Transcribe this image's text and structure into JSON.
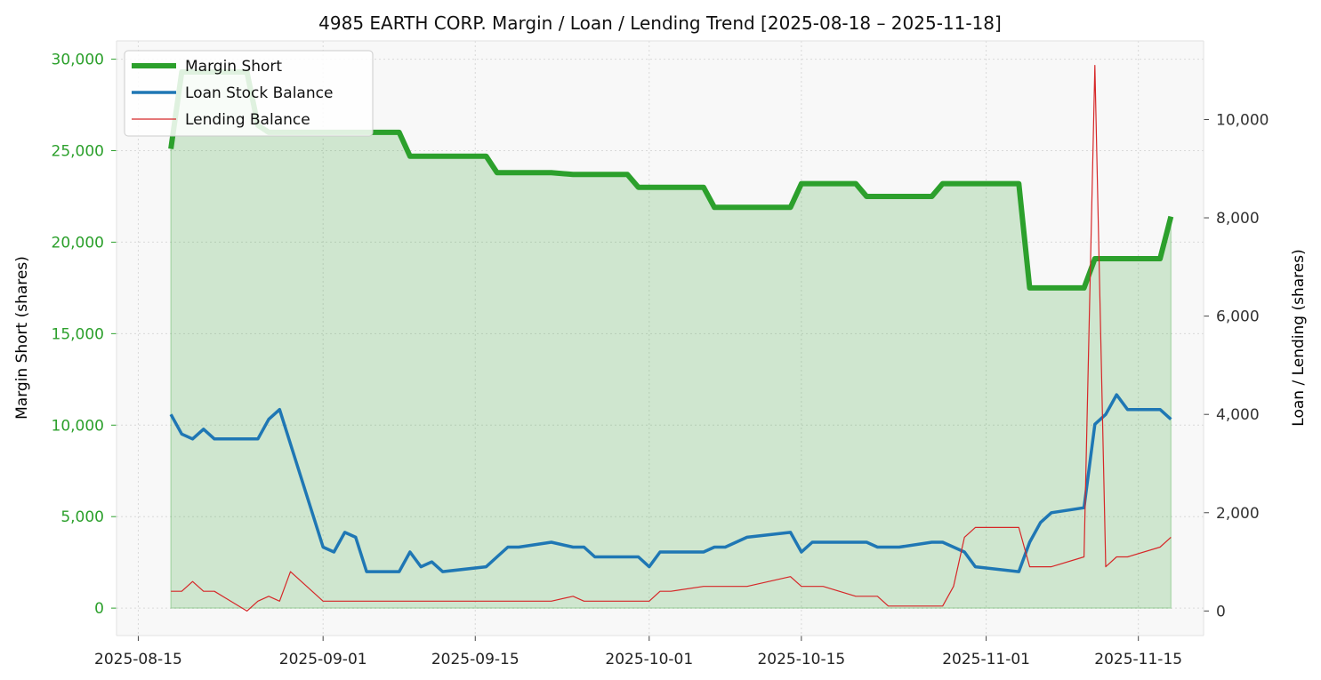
{
  "chart_data": {
    "type": "line",
    "title": "4985 EARTH CORP. Margin / Loan / Lending Trend [2025-08-18 – 2025-11-18]",
    "ylabel_left": "Margin Short (shares)",
    "ylabel_right": "Loan / Lending (shares)",
    "xlabel": "",
    "x_range": [
      "2025-08-13",
      "2025-11-21"
    ],
    "ylim_left": [
      -1500,
      31000
    ],
    "ylim_right": [
      -500,
      11600
    ],
    "x_ticks": [
      "2025-08-15",
      "2025-09-01",
      "2025-09-15",
      "2025-10-01",
      "2025-10-15",
      "2025-11-01",
      "2025-11-15"
    ],
    "y_ticks_left": [
      0,
      5000,
      10000,
      15000,
      20000,
      25000,
      30000
    ],
    "y_ticks_right": [
      0,
      2000,
      4000,
      6000,
      8000,
      10000
    ],
    "grid": true,
    "legend_position": "top-left",
    "colors": {
      "margin": "#2ca02c",
      "loan": "#1f77b4",
      "lending": "#d62728",
      "fill": "#2ca02c",
      "left_axis_text": "#2ca02c",
      "right_axis_text": "#333333",
      "plot_bg": "#f8f8f8"
    },
    "series": [
      {
        "name": "Margin Short",
        "axis": "left",
        "points": [
          [
            "2025-08-18",
            25100
          ],
          [
            "2025-08-19",
            29300
          ],
          [
            "2025-08-20",
            29300
          ],
          [
            "2025-08-21",
            29300
          ],
          [
            "2025-08-22",
            29300
          ],
          [
            "2025-08-25",
            29300
          ],
          [
            "2025-08-26",
            26400
          ],
          [
            "2025-08-27",
            26000
          ],
          [
            "2025-08-28",
            26000
          ],
          [
            "2025-08-29",
            26000
          ],
          [
            "2025-09-01",
            26000
          ],
          [
            "2025-09-02",
            26000
          ],
          [
            "2025-09-03",
            26000
          ],
          [
            "2025-09-04",
            26000
          ],
          [
            "2025-09-05",
            26000
          ],
          [
            "2025-09-08",
            26000
          ],
          [
            "2025-09-09",
            24700
          ],
          [
            "2025-09-10",
            24700
          ],
          [
            "2025-09-11",
            24700
          ],
          [
            "2025-09-12",
            24700
          ],
          [
            "2025-09-16",
            24700
          ],
          [
            "2025-09-17",
            23800
          ],
          [
            "2025-09-18",
            23800
          ],
          [
            "2025-09-19",
            23800
          ],
          [
            "2025-09-22",
            23800
          ],
          [
            "2025-09-24",
            23700
          ],
          [
            "2025-09-25",
            23700
          ],
          [
            "2025-09-26",
            23700
          ],
          [
            "2025-09-29",
            23700
          ],
          [
            "2025-09-30",
            23000
          ],
          [
            "2025-10-01",
            23000
          ],
          [
            "2025-10-02",
            23000
          ],
          [
            "2025-10-03",
            23000
          ],
          [
            "2025-10-06",
            23000
          ],
          [
            "2025-10-07",
            21900
          ],
          [
            "2025-10-08",
            21900
          ],
          [
            "2025-10-09",
            21900
          ],
          [
            "2025-10-10",
            21900
          ],
          [
            "2025-10-14",
            21900
          ],
          [
            "2025-10-15",
            23200
          ],
          [
            "2025-10-16",
            23200
          ],
          [
            "2025-10-17",
            23200
          ],
          [
            "2025-10-20",
            23200
          ],
          [
            "2025-10-21",
            22500
          ],
          [
            "2025-10-22",
            22500
          ],
          [
            "2025-10-23",
            22500
          ],
          [
            "2025-10-24",
            22500
          ],
          [
            "2025-10-27",
            22500
          ],
          [
            "2025-10-28",
            23200
          ],
          [
            "2025-10-29",
            23200
          ],
          [
            "2025-10-30",
            23200
          ],
          [
            "2025-10-31",
            23200
          ],
          [
            "2025-11-04",
            23200
          ],
          [
            "2025-11-05",
            17500
          ],
          [
            "2025-11-06",
            17500
          ],
          [
            "2025-11-07",
            17500
          ],
          [
            "2025-11-10",
            17500
          ],
          [
            "2025-11-11",
            19100
          ],
          [
            "2025-11-12",
            19100
          ],
          [
            "2025-11-13",
            19100
          ],
          [
            "2025-11-14",
            19100
          ],
          [
            "2025-11-17",
            19100
          ],
          [
            "2025-11-18",
            21400
          ]
        ]
      },
      {
        "name": "Loan Stock Balance",
        "axis": "right",
        "points": [
          [
            "2025-08-18",
            4000
          ],
          [
            "2025-08-19",
            3600
          ],
          [
            "2025-08-20",
            3500
          ],
          [
            "2025-08-21",
            3700
          ],
          [
            "2025-08-22",
            3500
          ],
          [
            "2025-08-25",
            3500
          ],
          [
            "2025-08-26",
            3500
          ],
          [
            "2025-08-27",
            3900
          ],
          [
            "2025-08-28",
            4100
          ],
          [
            "2025-09-01",
            1300
          ],
          [
            "2025-09-02",
            1200
          ],
          [
            "2025-09-03",
            1600
          ],
          [
            "2025-09-04",
            1500
          ],
          [
            "2025-09-05",
            800
          ],
          [
            "2025-09-08",
            800
          ],
          [
            "2025-09-09",
            1200
          ],
          [
            "2025-09-10",
            900
          ],
          [
            "2025-09-11",
            1000
          ],
          [
            "2025-09-12",
            800
          ],
          [
            "2025-09-16",
            900
          ],
          [
            "2025-09-17",
            1100
          ],
          [
            "2025-09-18",
            1300
          ],
          [
            "2025-09-19",
            1300
          ],
          [
            "2025-09-22",
            1400
          ],
          [
            "2025-09-24",
            1300
          ],
          [
            "2025-09-25",
            1300
          ],
          [
            "2025-09-26",
            1100
          ],
          [
            "2025-09-29",
            1100
          ],
          [
            "2025-09-30",
            1100
          ],
          [
            "2025-10-01",
            900
          ],
          [
            "2025-10-02",
            1200
          ],
          [
            "2025-10-03",
            1200
          ],
          [
            "2025-10-06",
            1200
          ],
          [
            "2025-10-07",
            1300
          ],
          [
            "2025-10-08",
            1300
          ],
          [
            "2025-10-10",
            1500
          ],
          [
            "2025-10-14",
            1600
          ],
          [
            "2025-10-15",
            1200
          ],
          [
            "2025-10-16",
            1400
          ],
          [
            "2025-10-17",
            1400
          ],
          [
            "2025-10-20",
            1400
          ],
          [
            "2025-10-21",
            1400
          ],
          [
            "2025-10-22",
            1300
          ],
          [
            "2025-10-24",
            1300
          ],
          [
            "2025-10-27",
            1400
          ],
          [
            "2025-10-28",
            1400
          ],
          [
            "2025-10-30",
            1200
          ],
          [
            "2025-10-31",
            900
          ],
          [
            "2025-11-04",
            800
          ],
          [
            "2025-11-05",
            1400
          ],
          [
            "2025-11-06",
            1800
          ],
          [
            "2025-11-07",
            2000
          ],
          [
            "2025-11-10",
            2100
          ],
          [
            "2025-11-11",
            3800
          ],
          [
            "2025-11-12",
            4000
          ],
          [
            "2025-11-13",
            4400
          ],
          [
            "2025-11-14",
            4100
          ],
          [
            "2025-11-17",
            4100
          ],
          [
            "2025-11-18",
            3900
          ]
        ]
      },
      {
        "name": "Lending Balance",
        "axis": "right",
        "points": [
          [
            "2025-08-18",
            400
          ],
          [
            "2025-08-19",
            400
          ],
          [
            "2025-08-20",
            600
          ],
          [
            "2025-08-21",
            400
          ],
          [
            "2025-08-22",
            400
          ],
          [
            "2025-08-25",
            0
          ],
          [
            "2025-08-26",
            200
          ],
          [
            "2025-08-27",
            300
          ],
          [
            "2025-08-28",
            200
          ],
          [
            "2025-08-29",
            800
          ],
          [
            "2025-09-01",
            200
          ],
          [
            "2025-09-22",
            200
          ],
          [
            "2025-09-24",
            300
          ],
          [
            "2025-09-25",
            200
          ],
          [
            "2025-09-30",
            200
          ],
          [
            "2025-10-01",
            200
          ],
          [
            "2025-10-02",
            400
          ],
          [
            "2025-10-03",
            400
          ],
          [
            "2025-10-06",
            500
          ],
          [
            "2025-10-10",
            500
          ],
          [
            "2025-10-14",
            700
          ],
          [
            "2025-10-15",
            500
          ],
          [
            "2025-10-17",
            500
          ],
          [
            "2025-10-20",
            300
          ],
          [
            "2025-10-22",
            300
          ],
          [
            "2025-10-23",
            100
          ],
          [
            "2025-10-28",
            100
          ],
          [
            "2025-10-29",
            500
          ],
          [
            "2025-10-30",
            1500
          ],
          [
            "2025-10-31",
            1700
          ],
          [
            "2025-11-04",
            1700
          ],
          [
            "2025-11-05",
            900
          ],
          [
            "2025-11-07",
            900
          ],
          [
            "2025-11-10",
            1100
          ],
          [
            "2025-11-11",
            11100
          ],
          [
            "2025-11-12",
            900
          ],
          [
            "2025-11-13",
            1100
          ],
          [
            "2025-11-14",
            1100
          ],
          [
            "2025-11-17",
            1300
          ],
          [
            "2025-11-18",
            1500
          ]
        ]
      }
    ]
  }
}
